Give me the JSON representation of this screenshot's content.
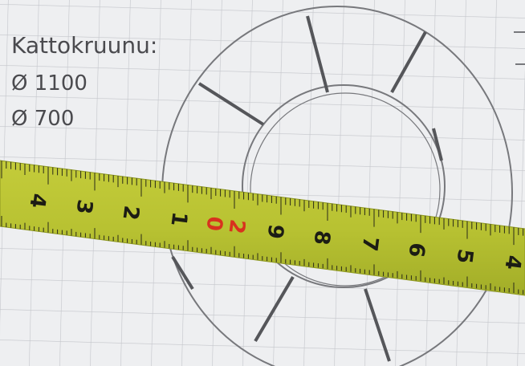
{
  "note": {
    "title": "Kattokruunu:",
    "items": [
      "Ø 1100",
      "Ø 700"
    ]
  },
  "tape": {
    "labels": [
      "4",
      "3",
      "2",
      "1",
      "0",
      "2",
      "9",
      "8",
      "7",
      "6",
      "5",
      "4"
    ]
  }
}
